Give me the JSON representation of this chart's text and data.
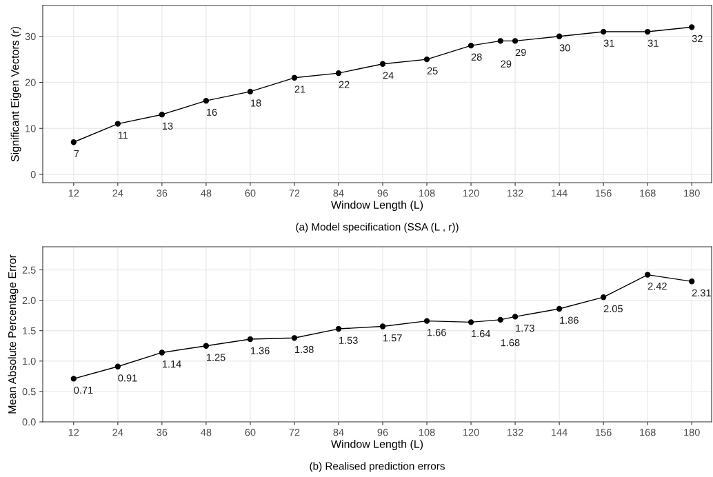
{
  "chart_data": [
    {
      "type": "line",
      "title": "(a) Model specification (SSA (L , r))",
      "xlabel": "Window Length (L)",
      "ylabel": "Significant Eigen Vectors (r)",
      "x": [
        12,
        24,
        36,
        48,
        60,
        72,
        84,
        96,
        108,
        120,
        128,
        132,
        144,
        156,
        168,
        180
      ],
      "series": [
        {
          "color": "#000000",
          "values": [
            7,
            11,
            13,
            16,
            18,
            21,
            22,
            24,
            25,
            28,
            29,
            29,
            30,
            31,
            31,
            32
          ]
        }
      ],
      "data_labels": true,
      "xlim": [
        3.6,
        185.4
      ],
      "xticks": [
        12,
        24,
        36,
        48,
        60,
        72,
        84,
        96,
        108,
        120,
        132,
        144,
        156,
        168,
        180
      ],
      "ylim": [
        -1.8,
        36.7
      ],
      "yticks": [
        0,
        10,
        20,
        30
      ],
      "grid": true,
      "marker": "circle",
      "line_style": "solid"
    },
    {
      "type": "line",
      "title": "(b) Realised prediction errors",
      "xlabel": "Window Length (L)",
      "ylabel": "Mean Absolute Percentage Error",
      "x": [
        12,
        24,
        36,
        48,
        60,
        72,
        84,
        96,
        108,
        120,
        128,
        132,
        144,
        156,
        168,
        180
      ],
      "series": [
        {
          "color": "#000000",
          "values": [
            0.71,
            0.91,
            1.14,
            1.25,
            1.36,
            1.38,
            1.53,
            1.57,
            1.66,
            1.64,
            1.68,
            1.73,
            1.86,
            2.05,
            2.42,
            2.31
          ]
        }
      ],
      "data_labels": true,
      "xlim": [
        3.6,
        185.4
      ],
      "xticks": [
        12,
        24,
        36,
        48,
        60,
        72,
        84,
        96,
        108,
        120,
        132,
        144,
        156,
        168,
        180
      ],
      "ylim": [
        0,
        2.88
      ],
      "yticks": [
        {
          "value": 0,
          "label": "0.0"
        },
        0.5,
        {
          "value": 1,
          "label": "1.0"
        },
        1.5,
        {
          "value": 2,
          "label": "2.0"
        },
        2.5
      ],
      "grid": true,
      "marker": "circle",
      "line_style": "solid"
    }
  ]
}
